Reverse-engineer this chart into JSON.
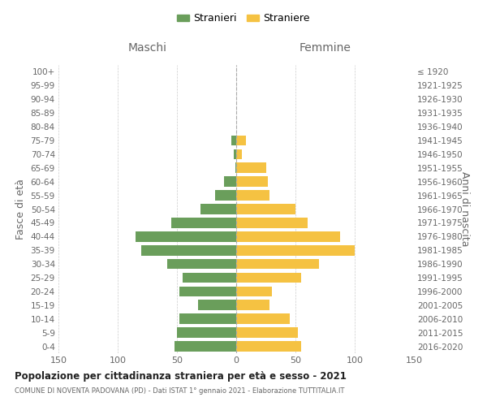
{
  "age_groups": [
    "0-4",
    "5-9",
    "10-14",
    "15-19",
    "20-24",
    "25-29",
    "30-34",
    "35-39",
    "40-44",
    "45-49",
    "50-54",
    "55-59",
    "60-64",
    "65-69",
    "70-74",
    "75-79",
    "80-84",
    "85-89",
    "90-94",
    "95-99",
    "100+"
  ],
  "birth_years": [
    "2016-2020",
    "2011-2015",
    "2006-2010",
    "2001-2005",
    "1996-2000",
    "1991-1995",
    "1986-1990",
    "1981-1985",
    "1976-1980",
    "1971-1975",
    "1966-1970",
    "1961-1965",
    "1956-1960",
    "1951-1955",
    "1946-1950",
    "1941-1945",
    "1936-1940",
    "1931-1935",
    "1926-1930",
    "1921-1925",
    "≤ 1920"
  ],
  "males": [
    52,
    50,
    48,
    32,
    48,
    45,
    58,
    80,
    85,
    55,
    30,
    18,
    10,
    1,
    2,
    4,
    0,
    0,
    0,
    0,
    0
  ],
  "females": [
    55,
    52,
    45,
    28,
    30,
    55,
    70,
    100,
    88,
    60,
    50,
    28,
    27,
    25,
    5,
    8,
    0,
    0,
    0,
    0,
    0
  ],
  "male_color": "#6a9e5b",
  "female_color": "#f5c242",
  "background_color": "#ffffff",
  "grid_color": "#cccccc",
  "title": "Popolazione per cittadinanza straniera per età e sesso - 2021",
  "subtitle": "COMUNE DI NOVENTA PADOVANA (PD) - Dati ISTAT 1° gennaio 2021 - Elaborazione TUTTITALIA.IT",
  "xlabel_left": "Maschi",
  "xlabel_right": "Femmine",
  "ylabel_left": "Fasce di età",
  "ylabel_right": "Anni di nascita",
  "legend_male": "Stranieri",
  "legend_female": "Straniere",
  "xlim": 150
}
